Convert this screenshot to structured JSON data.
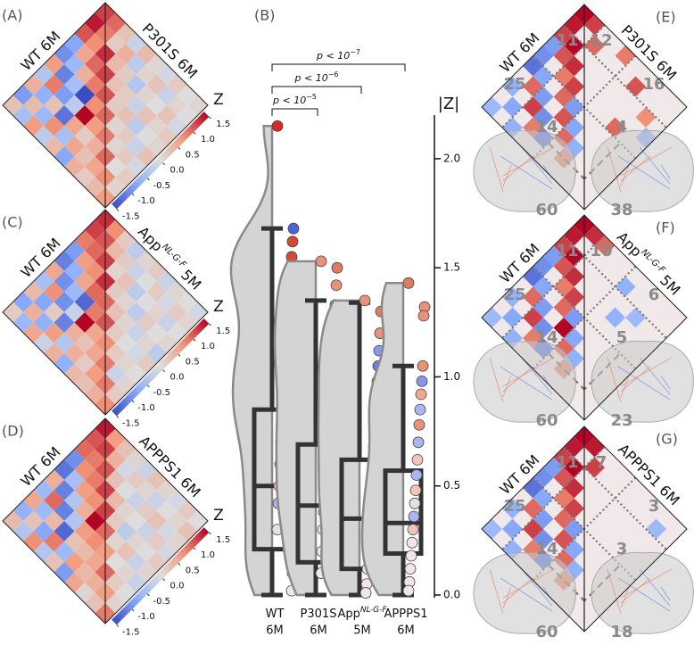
{
  "chart_data": [
    {
      "type": "heatmap",
      "panel": "(A)",
      "left_label": "WT 6M",
      "right_label": "P301S 6M",
      "colorbar_label": "Z",
      "clim": [
        -1.5,
        1.5
      ],
      "cticks": [
        -1.5,
        {
          "value": -1,
          "label": "-1.0"
        },
        -0.5,
        {
          "value": 0,
          "label": "0.0"
        },
        0.5,
        {
          "value": 1,
          "label": "1.0"
        },
        1.5
      ],
      "matrix": [
        [
          1.2,
          1.0,
          0.3,
          -0.2,
          0.4,
          0.1,
          -0.1,
          0.2,
          0.0,
          0.1
        ],
        [
          1.4,
          0.9,
          0.2,
          0.5,
          -0.3,
          0.1,
          0.3,
          -0.2,
          0.1,
          0.0
        ],
        [
          1.1,
          0.8,
          1.3,
          0.4,
          0.2,
          -0.4,
          0.1,
          0.0,
          0.3,
          -0.1
        ],
        [
          -0.8,
          0.6,
          1.0,
          1.2,
          0.3,
          0.2,
          -0.2,
          0.3,
          0.1,
          0.2
        ],
        [
          -1.0,
          -0.6,
          0.5,
          0.9,
          1.1,
          0.2,
          0.3,
          -0.3,
          0.0,
          0.1
        ],
        [
          0.7,
          -1.1,
          -0.5,
          -1.6,
          0.8,
          1.0,
          0.1,
          0.2,
          -0.2,
          0.3
        ],
        [
          -0.4,
          0.9,
          -0.9,
          -0.3,
          1.6,
          0.7,
          0.9,
          0.1,
          0.2,
          -0.1
        ],
        [
          0.5,
          -0.7,
          0.3,
          -1.2,
          0.6,
          0.2,
          0.5,
          1.0,
          0.0,
          0.2
        ],
        [
          -0.9,
          0.4,
          -0.6,
          0.8,
          -0.5,
          0.6,
          0.3,
          0.6,
          0.8,
          0.1
        ],
        [
          0.3,
          -0.5,
          0.7,
          -0.3,
          0.4,
          -0.8,
          0.5,
          0.2,
          0.4,
          0.7
        ]
      ]
    },
    {
      "type": "box",
      "panel": "(B)",
      "ylabel": "|Z|",
      "ylim": [
        0,
        2.2
      ],
      "yticks": [
        {
          "value": 0,
          "label": "0.0"
        },
        0.5,
        {
          "value": 1,
          "label": "1.0"
        },
        1.5,
        {
          "value": 2,
          "label": "2.0"
        }
      ],
      "categories": [
        "WT",
        "P301S",
        "App",
        "APPPS1"
      ],
      "category_superscripts": [
        null,
        null,
        "NL-G-F",
        null
      ],
      "category_ages": [
        "6M",
        "6M",
        "5M",
        "6M"
      ],
      "violin_color": "#d4d4d4",
      "box_color": "#333333",
      "groups": [
        {
          "whislo": 0.0,
          "q1": 0.21,
          "med": 0.5,
          "q3": 0.85,
          "whishi": 1.68,
          "points": [
            2.15,
            1.68,
            1.62,
            1.55,
            1.5,
            1.45,
            1.38,
            1.3,
            1.2,
            1.1,
            1.05,
            0.98,
            0.9,
            0.85,
            0.78,
            0.7,
            0.6,
            0.5,
            0.42,
            0.3,
            0.2,
            0.1,
            0.02
          ],
          "point_colors": [
            "#d42a20",
            "#4f63d8",
            "#d44a3a",
            "#d44a3a",
            "#d44a3a",
            "#e8927a",
            "#6f7fe0",
            "#6f7fe0",
            "#8a97e8",
            "#d44a3a",
            "#6f7fe0",
            "#8a97e8",
            "#e8927a",
            "#6f7fe0",
            "#e8927a",
            "#aab4f0",
            "#e8e0e0",
            "#f2c4b6",
            "#aab4f0",
            "#e8e0e0",
            "#f0e6e6",
            "#f0e6e6",
            "#f0e6e6"
          ]
        },
        {
          "whislo": 0.0,
          "q1": 0.15,
          "med": 0.41,
          "q3": 0.69,
          "whishi": 1.35,
          "points": [
            1.53,
            1.5,
            1.42,
            1.33,
            1.25,
            1.2,
            1.12,
            1.05,
            0.98,
            0.9,
            0.82,
            0.74,
            0.68,
            0.6,
            0.52,
            0.45,
            0.38,
            0.3,
            0.2,
            0.1,
            0.03
          ],
          "point_colors": [
            "#e8927a",
            "#e07a62",
            "#e8927a",
            "#e07a62",
            "#6f7fe0",
            "#e8927a",
            "#8a97e8",
            "#e8927a",
            "#aab4f0",
            "#e8927a",
            "#8a97e8",
            "#f0a890",
            "#aab4f0",
            "#8a97e8",
            "#f2c4b6",
            "#aab4f0",
            "#f2c4b6",
            "#e8e0e0",
            "#f0e6e6",
            "#f0e6e6",
            "#f0e6e6"
          ]
        },
        {
          "whislo": 0.0,
          "q1": 0.12,
          "med": 0.35,
          "q3": 0.62,
          "whishi": 1.34,
          "points": [
            1.35,
            1.3,
            1.2,
            1.12,
            1.05,
            0.98,
            0.9,
            0.82,
            0.75,
            0.68,
            0.6,
            0.52,
            0.45,
            0.38,
            0.3,
            0.2,
            0.12,
            0.05,
            0.01
          ],
          "point_colors": [
            "#e8927a",
            "#e07a62",
            "#e8927a",
            "#8a97e8",
            "#6f7fe0",
            "#e8927a",
            "#aab4f0",
            "#f0a890",
            "#8a97e8",
            "#f2c4b6",
            "#aab4f0",
            "#f2c4b6",
            "#aab4f0",
            "#f2c4b6",
            "#e8e0e0",
            "#f0e6e6",
            "#f0e6e6",
            "#f0e6e6",
            "#f0e6e6"
          ]
        },
        {
          "whislo": 0.0,
          "q1": 0.19,
          "med": 0.33,
          "q3": 0.57,
          "whishi": 1.05,
          "points": [
            1.43,
            1.32,
            1.28,
            1.05,
            0.98,
            0.92,
            0.85,
            0.78,
            0.7,
            0.62,
            0.55,
            0.48,
            0.42,
            0.36,
            0.3,
            0.24,
            0.18,
            0.12,
            0.06,
            0.02
          ],
          "point_colors": [
            "#e07a62",
            "#e8927a",
            "#e8927a",
            "#e8927a",
            "#8a97e8",
            "#f0a890",
            "#aab4f0",
            "#e8927a",
            "#aab4f0",
            "#f2c4b6",
            "#aab4f0",
            "#f2c4b6",
            "#e8e0e0",
            "#aab4f0",
            "#f2c4b6",
            "#f0e6e6",
            "#f0e6e6",
            "#f0e6e6",
            "#f0e6e6",
            "#f0e6e6"
          ]
        }
      ],
      "comparisons": [
        {
          "groups": [
            "WT",
            "P301S"
          ],
          "text": "p < 10",
          "exponent": "−5"
        },
        {
          "groups": [
            "WT",
            "App"
          ],
          "text": "p < 10",
          "exponent": "−6"
        },
        {
          "groups": [
            "WT",
            "APPPS1"
          ],
          "text": "p < 10",
          "exponent": "−7"
        }
      ]
    },
    {
      "type": "heatmap",
      "panel": "(C)",
      "left_label": "WT 6M",
      "right_label": "App",
      "right_label_sup": "NL-G-F",
      "right_label_tail": "5M",
      "colorbar_label": "Z",
      "clim": [
        -1.5,
        1.5
      ],
      "cticks": [
        -1.5,
        {
          "value": -1,
          "label": "-1.0"
        },
        -0.5,
        {
          "value": 0,
          "label": "0.0"
        },
        0.5,
        {
          "value": 1,
          "label": "1.0"
        },
        1.5
      ],
      "matrix": [
        [
          1.3,
          0.8,
          0.2,
          -0.3,
          0.1,
          0.2,
          -0.2,
          0.1,
          0.0,
          -0.1
        ],
        [
          1.2,
          1.1,
          0.4,
          0.2,
          -0.2,
          0.0,
          0.2,
          -0.1,
          0.2,
          0.1
        ],
        [
          0.9,
          1.0,
          1.2,
          0.1,
          0.3,
          -0.3,
          0.0,
          0.1,
          -0.2,
          0.0
        ],
        [
          -0.9,
          0.7,
          0.8,
          1.3,
          0.2,
          0.1,
          -0.3,
          0.2,
          0.0,
          0.1
        ],
        [
          -1.1,
          -0.7,
          0.6,
          1.0,
          1.0,
          0.3,
          0.1,
          -0.2,
          0.1,
          -0.3
        ],
        [
          0.6,
          -1.0,
          -0.6,
          -1.3,
          0.9,
          1.1,
          0.2,
          0.0,
          -0.1,
          0.2
        ],
        [
          -0.5,
          0.8,
          -1.0,
          -0.2,
          1.7,
          0.6,
          0.8,
          0.2,
          0.1,
          0.0
        ],
        [
          0.4,
          -0.8,
          0.2,
          -1.1,
          0.5,
          0.3,
          0.6,
          0.9,
          -0.2,
          0.1
        ],
        [
          -0.8,
          0.5,
          -0.7,
          0.7,
          -0.4,
          0.5,
          0.2,
          0.7,
          0.9,
          0.2
        ],
        [
          0.2,
          -0.6,
          0.6,
          -0.2,
          0.5,
          -0.7,
          0.4,
          0.3,
          0.5,
          0.8
        ]
      ]
    },
    {
      "type": "heatmap",
      "panel": "(D)",
      "left_label": "WT 6M",
      "right_label": "APPPS1 6M",
      "colorbar_label": "Z",
      "clim": [
        -1.5,
        1.5
      ],
      "cticks": [
        -1.5,
        {
          "value": -1,
          "label": "-1.0"
        },
        -0.5,
        {
          "value": 0,
          "label": "0.0"
        },
        0.5,
        {
          "value": 1,
          "label": "1.0"
        },
        1.5
      ],
      "matrix": [
        [
          1.4,
          0.7,
          0.3,
          0.1,
          -0.2,
          0.3,
          0.1,
          -0.1,
          0.2,
          0.0
        ],
        [
          1.1,
          1.2,
          0.5,
          -0.1,
          0.2,
          0.1,
          -0.2,
          0.0,
          0.1,
          0.3
        ],
        [
          1.0,
          0.9,
          1.1,
          0.3,
          0.0,
          -0.2,
          0.2,
          0.3,
          -0.1,
          0.1
        ],
        [
          -1.0,
          0.8,
          0.9,
          1.2,
          0.4,
          0.1,
          0.0,
          -0.2,
          0.2,
          -0.1
        ],
        [
          -1.2,
          -0.5,
          0.7,
          0.8,
          1.2,
          0.2,
          -0.3,
          0.1,
          0.0,
          0.2
        ],
        [
          0.5,
          -1.1,
          -0.4,
          0.5,
          1.6,
          1.0,
          0.1,
          0.3,
          -0.2,
          0.1
        ],
        [
          -0.6,
          1.0,
          -1.1,
          -0.4,
          0.7,
          0.8,
          0.7,
          0.0,
          0.1,
          -0.2
        ],
        [
          0.6,
          -0.6,
          0.4,
          -1.3,
          0.3,
          0.4,
          0.6,
          1.0,
          0.2,
          0.0
        ],
        [
          -0.7,
          0.3,
          -0.8,
          0.9,
          -0.6,
          0.7,
          0.4,
          0.5,
          0.7,
          0.1
        ],
        [
          0.4,
          -0.4,
          0.8,
          -0.4,
          0.3,
          -0.9,
          0.6,
          0.1,
          0.3,
          0.9
        ]
      ]
    },
    {
      "type": "heatmap",
      "panel": "(E)",
      "left_label": "WT 6M",
      "right_label": "P301S 6M",
      "clim": [
        -1.5,
        1.5
      ],
      "background": "#f1e9e9",
      "wt_counts": [
        11,
        25,
        14,
        60
      ],
      "counts": [
        12,
        16,
        4,
        38
      ],
      "matrix": [
        [
          1.5,
          1.2,
          null,
          null,
          0.9,
          null,
          null,
          null,
          null,
          null
        ],
        [
          1.4,
          null,
          1.0,
          null,
          null,
          null,
          1.1,
          null,
          null,
          null
        ],
        [
          1.2,
          1.5,
          null,
          null,
          null,
          null,
          null,
          null,
          0.8,
          null
        ],
        [
          -0.9,
          1.1,
          1.3,
          null,
          null,
          null,
          null,
          null,
          null,
          -0.7
        ],
        [
          -1.0,
          null,
          0.9,
          1.2,
          null,
          null,
          null,
          1.0,
          null,
          null
        ],
        [
          -1.2,
          -0.8,
          null,
          1.0,
          -0.9,
          null,
          null,
          null,
          null,
          null
        ],
        [
          null,
          1.0,
          -0.9,
          null,
          1.1,
          -0.8,
          null,
          null,
          null,
          null
        ],
        [
          -0.7,
          null,
          1.2,
          -1.0,
          null,
          1.0,
          -0.7,
          null,
          null,
          null
        ],
        [
          null,
          -0.8,
          null,
          0.9,
          -1.1,
          null,
          0.8,
          null,
          null,
          null
        ],
        [
          -0.6,
          null,
          -0.7,
          null,
          null,
          null,
          null,
          null,
          null,
          null
        ]
      ]
    },
    {
      "type": "heatmap",
      "panel": "(F)",
      "left_label": "WT 6M",
      "right_label": "App",
      "right_label_sup": "NL-G-F",
      "right_label_tail": "5M",
      "clim": [
        -1.5,
        1.5
      ],
      "background": "#f1e9e9",
      "wt_counts": [
        11,
        25,
        14,
        60
      ],
      "counts": [
        10,
        6,
        5,
        23
      ],
      "matrix": [
        [
          1.5,
          1.3,
          1.0,
          null,
          null,
          null,
          null,
          null,
          null,
          null
        ],
        [
          1.4,
          null,
          null,
          null,
          null,
          -0.7,
          null,
          null,
          null,
          null
        ],
        [
          1.2,
          1.5,
          null,
          null,
          null,
          null,
          null,
          -0.6,
          null,
          null
        ],
        [
          -0.9,
          1.1,
          1.3,
          null,
          null,
          null,
          -0.7,
          null,
          null,
          null
        ],
        [
          -1.0,
          null,
          0.9,
          1.2,
          null,
          null,
          null,
          null,
          null,
          null
        ],
        [
          -1.2,
          -0.8,
          null,
          1.0,
          -0.9,
          null,
          null,
          null,
          null,
          null
        ],
        [
          null,
          1.0,
          -0.9,
          null,
          1.6,
          -0.8,
          null,
          null,
          null,
          null
        ],
        [
          -0.7,
          null,
          1.2,
          -1.0,
          null,
          1.0,
          -0.7,
          null,
          null,
          null
        ],
        [
          null,
          -0.8,
          null,
          0.9,
          -1.1,
          null,
          0.8,
          null,
          null,
          null
        ],
        [
          -0.6,
          null,
          -0.7,
          null,
          null,
          null,
          null,
          null,
          null,
          null
        ]
      ]
    },
    {
      "type": "heatmap",
      "panel": "(G)",
      "left_label": "WT 6M",
      "right_label": "APPPS1 6M",
      "clim": [
        -1.5,
        1.5
      ],
      "background": "#f1e9e9",
      "wt_counts": [
        11,
        25,
        14,
        60
      ],
      "counts": [
        7,
        3,
        3,
        18
      ],
      "matrix": [
        [
          1.5,
          1.4,
          null,
          null,
          null,
          null,
          null,
          null,
          null,
          null
        ],
        [
          1.4,
          null,
          1.2,
          null,
          null,
          null,
          null,
          null,
          -0.6,
          null
        ],
        [
          1.2,
          1.5,
          null,
          null,
          null,
          null,
          null,
          null,
          null,
          null
        ],
        [
          -0.9,
          1.1,
          1.3,
          null,
          null,
          null,
          null,
          null,
          null,
          null
        ],
        [
          -1.0,
          null,
          0.9,
          1.2,
          null,
          null,
          null,
          null,
          null,
          null
        ],
        [
          -1.2,
          -0.8,
          null,
          1.0,
          -0.9,
          null,
          null,
          null,
          null,
          null
        ],
        [
          null,
          1.0,
          -0.9,
          null,
          1.1,
          -0.8,
          null,
          null,
          null,
          null
        ],
        [
          -0.7,
          null,
          1.2,
          -1.0,
          null,
          1.0,
          -0.7,
          null,
          null,
          null
        ],
        [
          null,
          -0.8,
          null,
          0.9,
          -1.1,
          null,
          0.8,
          null,
          null,
          null
        ],
        [
          -0.6,
          null,
          -0.7,
          null,
          null,
          null,
          null,
          null,
          null,
          null
        ]
      ]
    }
  ]
}
